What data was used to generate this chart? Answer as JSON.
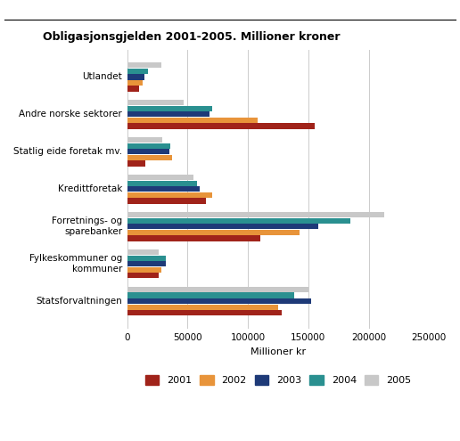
{
  "title": "Obligasjonsgjelden 2001-2005. Millioner kroner",
  "categories": [
    "Utlandet",
    "Andre norske sektorer",
    "Statlig eide foretak mv.",
    "Kredittforetak",
    "Forretnings- og\nsparebanker",
    "Fylkeskommuner og\nkommuner",
    "Statsforvaltningen"
  ],
  "years": [
    "2001",
    "2002",
    "2003",
    "2004",
    "2005"
  ],
  "colors": [
    "#A0231A",
    "#E8943A",
    "#1E3A78",
    "#2A9090",
    "#C8C8C8"
  ],
  "data": [
    [
      10000,
      13000,
      14000,
      17000,
      28000
    ],
    [
      155000,
      108000,
      68000,
      70000,
      47000
    ],
    [
      15000,
      37000,
      35000,
      36000,
      29000
    ],
    [
      65000,
      70000,
      60000,
      58000,
      55000
    ],
    [
      110000,
      143000,
      158000,
      185000,
      213000
    ],
    [
      26000,
      28000,
      32000,
      32000,
      26000
    ],
    [
      128000,
      125000,
      152000,
      138000,
      150000
    ]
  ],
  "xlim": [
    0,
    250000
  ],
  "xticks": [
    0,
    50000,
    100000,
    150000,
    200000,
    250000
  ],
  "xtick_labels": [
    "0",
    "50000",
    "100000",
    "150000",
    "200000",
    "250000"
  ],
  "xlabel": "Millioner kr",
  "background_color": "#FFFFFF",
  "grid_color": "#CCCCCC"
}
